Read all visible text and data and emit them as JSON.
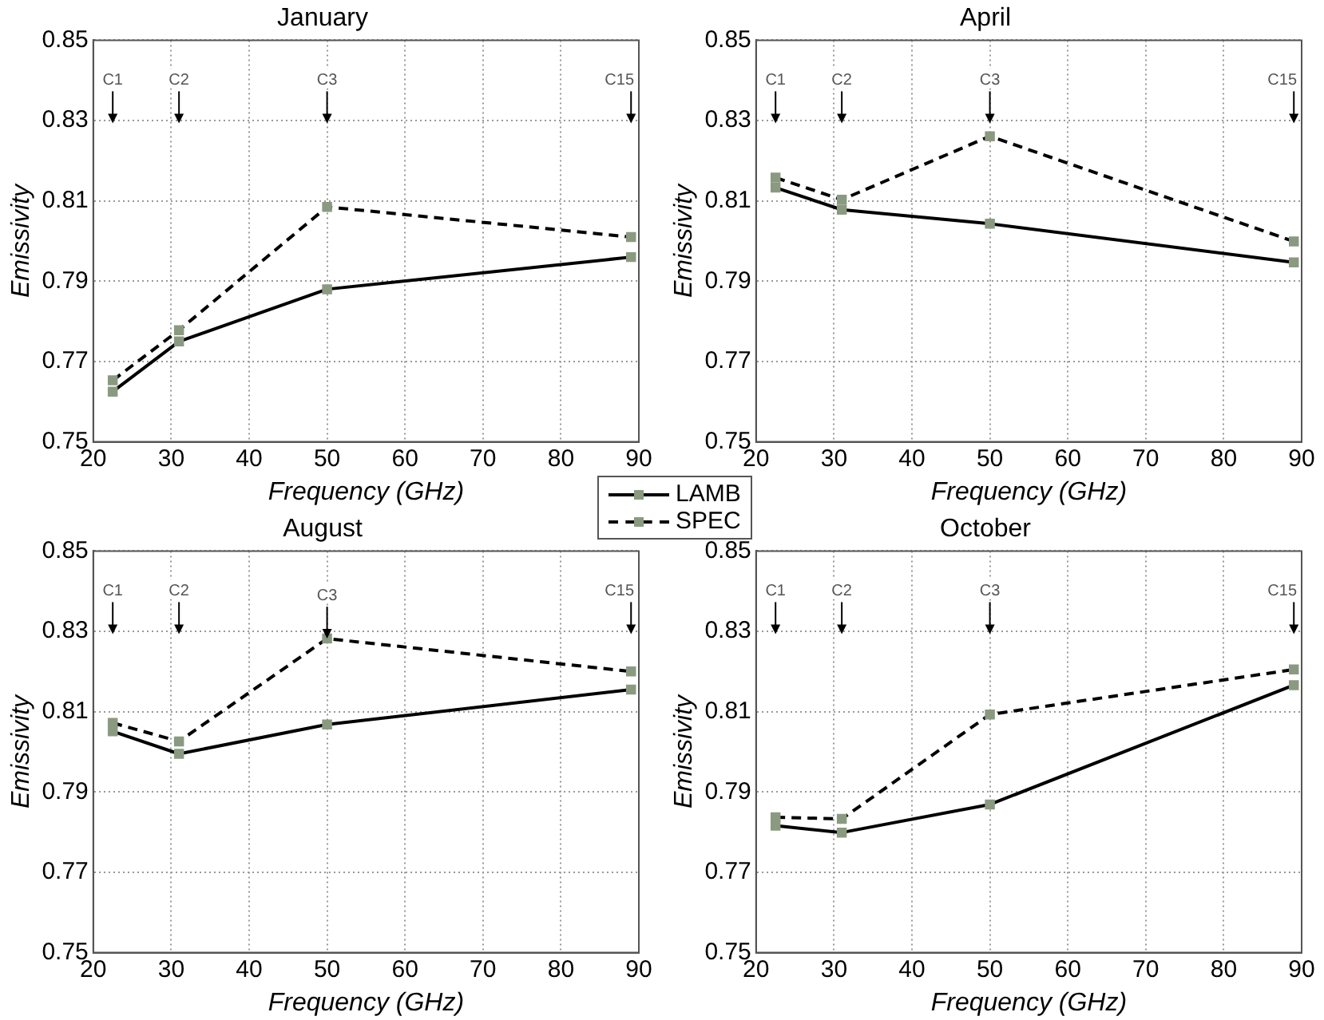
{
  "chart_data": [
    {
      "type": "line",
      "title": "January",
      "xlabel": "Frequency (GHz)",
      "ylabel": "Emissivity",
      "xlim": [
        20,
        90
      ],
      "xticks": [
        20,
        30,
        40,
        50,
        60,
        70,
        80,
        90
      ],
      "ylim": [
        0.75,
        0.85
      ],
      "yticks": [
        0.75,
        0.77,
        0.79,
        0.81,
        0.83,
        0.85
      ],
      "grid": true,
      "marker": "square",
      "legend": "bottom right",
      "series": [
        {
          "name": "LAMB",
          "color": "#000000",
          "line_style": "solid",
          "x": [
            22.5,
            31,
            50,
            89
          ],
          "values": [
            0.7625,
            0.775,
            0.788,
            0.796
          ]
        },
        {
          "name": "SPEC",
          "color": "#000000",
          "line_style": "dashed",
          "x": [
            22.5,
            31,
            50,
            89
          ],
          "values": [
            0.7653,
            0.7778,
            0.8085,
            0.801
          ]
        }
      ],
      "annotations": [
        "C1",
        "C2",
        "C3",
        "C15"
      ]
    },
    {
      "type": "line",
      "title": "April",
      "xlabel": "Frequency (GHz)",
      "ylabel": "Emissivity",
      "xlim": [
        20,
        90
      ],
      "xticks": [
        20,
        30,
        40,
        50,
        60,
        70,
        80,
        90
      ],
      "ylim": [
        0.75,
        0.85
      ],
      "yticks": [
        0.75,
        0.77,
        0.79,
        0.81,
        0.83,
        0.85
      ],
      "grid": true,
      "marker": "square",
      "series": [
        {
          "color": "#000000",
          "line_style": "solid",
          "x": [
            22.5,
            31,
            50,
            89
          ],
          "values": [
            0.8133,
            0.8078,
            0.8043,
            0.7947
          ]
        },
        {
          "color": "#000000",
          "line_style": "dashed",
          "x": [
            22.5,
            31,
            50,
            89
          ],
          "values": [
            0.8158,
            0.8103,
            0.8261,
            0.7999
          ]
        }
      ],
      "annotations": [
        "C1",
        "C2",
        "C3",
        "C15"
      ]
    },
    {
      "type": "line",
      "title": "August",
      "xlabel": "Frequency (GHz)",
      "ylabel": "Emissivity",
      "xlim": [
        20,
        90
      ],
      "xticks": [
        20,
        30,
        40,
        50,
        60,
        70,
        80,
        90
      ],
      "ylim": [
        0.75,
        0.85
      ],
      "yticks": [
        0.75,
        0.77,
        0.79,
        0.81,
        0.83,
        0.85
      ],
      "grid": true,
      "marker": "square",
      "series": [
        {
          "color": "#000000",
          "line_style": "solid",
          "x": [
            22.5,
            31,
            50,
            89
          ],
          "values": [
            0.8051,
            0.7995,
            0.8068,
            0.8155
          ]
        },
        {
          "color": "#000000",
          "line_style": "dashed",
          "x": [
            22.5,
            31,
            50,
            89
          ],
          "values": [
            0.8072,
            0.8026,
            0.8282,
            0.82
          ]
        }
      ],
      "annotations": [
        "C1",
        "C2",
        {
          "text": "C3",
          "x": 50,
          "y": 0.8282
        },
        "C15"
      ]
    },
    {
      "type": "line",
      "title": "October",
      "xlabel": "Frequency (GHz)",
      "ylabel": "Emissivity",
      "xlim": [
        20,
        90
      ],
      "xticks": [
        20,
        30,
        40,
        50,
        60,
        70,
        80,
        90
      ],
      "ylim": [
        0.75,
        0.85
      ],
      "yticks": [
        0.75,
        0.77,
        0.79,
        0.81,
        0.83,
        0.85
      ],
      "grid": true,
      "marker": "square",
      "series": [
        {
          "color": "#000000",
          "line_style": "solid",
          "x": [
            22.5,
            31,
            50,
            89
          ],
          "values": [
            0.7816,
            0.7799,
            0.7869,
            0.8166
          ]
        },
        {
          "color": "#000000",
          "line_style": "dashed",
          "x": [
            22.5,
            31,
            50,
            89
          ],
          "values": [
            0.7837,
            0.7833,
            0.8093,
            0.8205
          ]
        }
      ],
      "annotations": [
        "C1",
        "C2",
        "C3",
        "C15"
      ]
    }
  ]
}
